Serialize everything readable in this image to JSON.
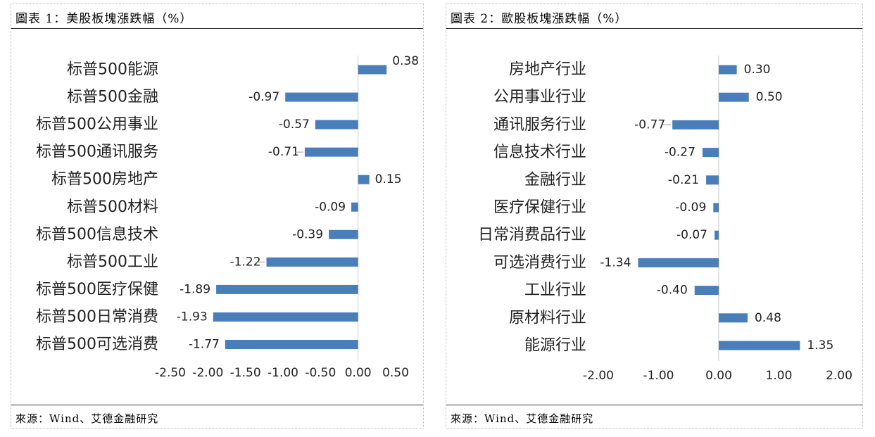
{
  "chart_data": [
    {
      "type": "bar",
      "orientation": "horizontal",
      "title": "圖表 1：美股板塊漲跌幅（%）",
      "source": "來源：Wind、艾德金融研究",
      "categories": [
        "标普500能源",
        "标普500金融",
        "标普500公用事业",
        "标普500通讯服务",
        "标普500房地产",
        "标普500材料",
        "标普500信息技术",
        "标普500工业",
        "标普500医疗保健",
        "标普500日常消费",
        "标普500可选消费"
      ],
      "values": [
        0.38,
        -0.97,
        -0.57,
        -0.71,
        0.15,
        -0.09,
        -0.39,
        -1.22,
        -1.89,
        -1.93,
        -1.77
      ],
      "value_labels": [
        "0.38",
        "-0.97",
        "-0.57",
        "-0.71",
        "0.15",
        "-0.09",
        "-0.39",
        "-1.22",
        "-1.89",
        "-1.93",
        "-1.77"
      ],
      "xlim": [
        -2.5,
        0.5
      ],
      "xticks": [
        "-2.50",
        "-2.00",
        "-1.50",
        "-1.00",
        "-0.50",
        "0.00",
        "0.50"
      ],
      "xtick_values": [
        -2.5,
        -2.0,
        -1.5,
        -1.0,
        -0.5,
        0.0,
        0.5
      ],
      "bar_color": "#4a7ebb",
      "grid": false,
      "legend": "none"
    },
    {
      "type": "bar",
      "orientation": "horizontal",
      "title": "圖表 2：歐股板塊漲跌幅（%）",
      "source": "來源：Wind、艾德金融研究",
      "categories": [
        "房地产行业",
        "公用事业行业",
        "通讯服务行业",
        "信息技术行业",
        "金融行业",
        "医疗保健行业",
        "日常消费品行业",
        "可选消费行业",
        "工业行业",
        "原材料行业",
        "能源行业"
      ],
      "values": [
        0.3,
        0.5,
        -0.77,
        -0.27,
        -0.21,
        -0.09,
        -0.07,
        -1.34,
        -0.4,
        0.48,
        1.35
      ],
      "value_labels": [
        "0.30",
        "0.50",
        "-0.77",
        "-0.27",
        "-0.21",
        "-0.09",
        "-0.07",
        "-1.34",
        "-0.40",
        "0.48",
        "1.35"
      ],
      "xlim": [
        -2.0,
        2.0
      ],
      "xticks": [
        "-2.00",
        "-1.00",
        "0.00",
        "1.00",
        "2.00"
      ],
      "xtick_values": [
        -2.0,
        -1.0,
        0.0,
        1.0,
        2.0
      ],
      "bar_color": "#4a7ebb",
      "grid": false,
      "legend": "none"
    }
  ]
}
